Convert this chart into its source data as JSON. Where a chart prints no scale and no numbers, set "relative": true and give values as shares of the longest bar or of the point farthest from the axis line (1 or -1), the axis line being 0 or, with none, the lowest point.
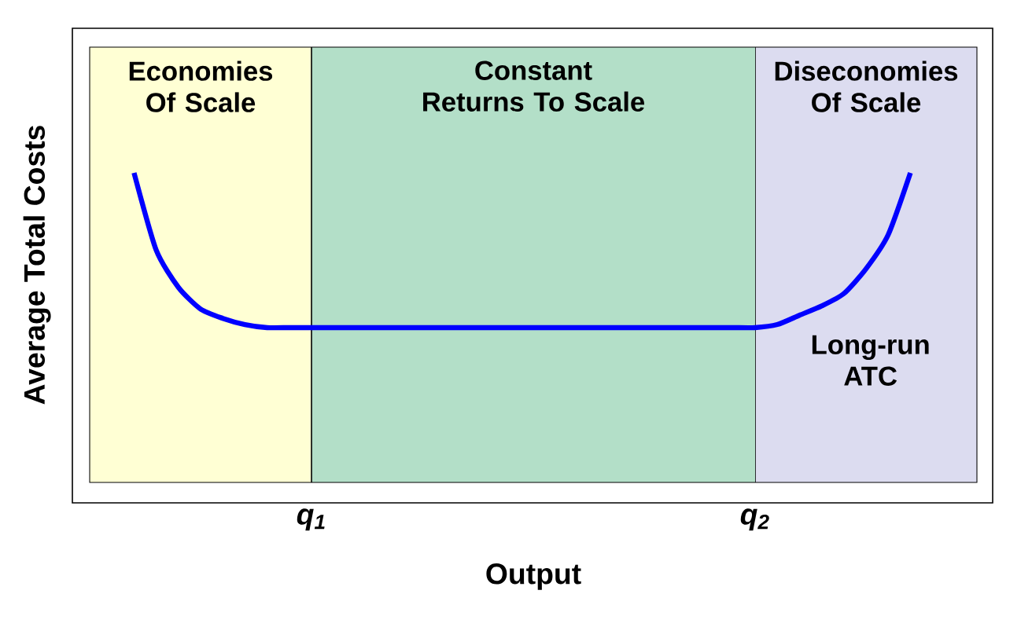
{
  "chart_data": {
    "type": "line",
    "relative": true,
    "xlabel": "Output",
    "ylabel": "Average Total Costs",
    "categories": [
      null,
      null,
      null,
      null,
      null,
      null,
      null,
      null,
      null,
      null,
      "q$_{1}$",
      null,
      null,
      null,
      null,
      null,
      null,
      null,
      null,
      null,
      null,
      null,
      null,
      null,
      null,
      null,
      null,
      null,
      null,
      null,
      "q$_{2}$",
      null,
      null,
      null,
      null,
      null,
      null,
      null,
      null,
      null,
      null
    ],
    "series": [
      {
        "color": "#0000ff",
        "values": [
          null,
          null,
          1.0,
          0.75,
          0.63,
          0.56,
          0.53,
          0.51,
          0.5,
          0.5,
          0.5,
          0.5,
          0.5,
          0.5,
          0.5,
          0.5,
          0.5,
          0.5,
          0.5,
          0.5,
          0.5,
          0.5,
          0.5,
          0.5,
          0.5,
          0.5,
          0.5,
          0.5,
          0.5,
          0.5,
          0.5,
          0.51,
          0.54,
          0.57,
          0.61,
          0.69,
          0.8,
          1.0,
          null,
          null,
          null
        ]
      }
    ],
    "bands": [
      {
        "axis": "x",
        "from": "q$_{1}$",
        "to": "q$_{2}$",
        "label": "Constant Returns To Scale",
        "color": "#b3dfc8"
      }
    ],
    "annotations": [
      "Economies Of Scale",
      "Diseconomies Of Scale",
      "Long-run ATC"
    ]
  }
}
